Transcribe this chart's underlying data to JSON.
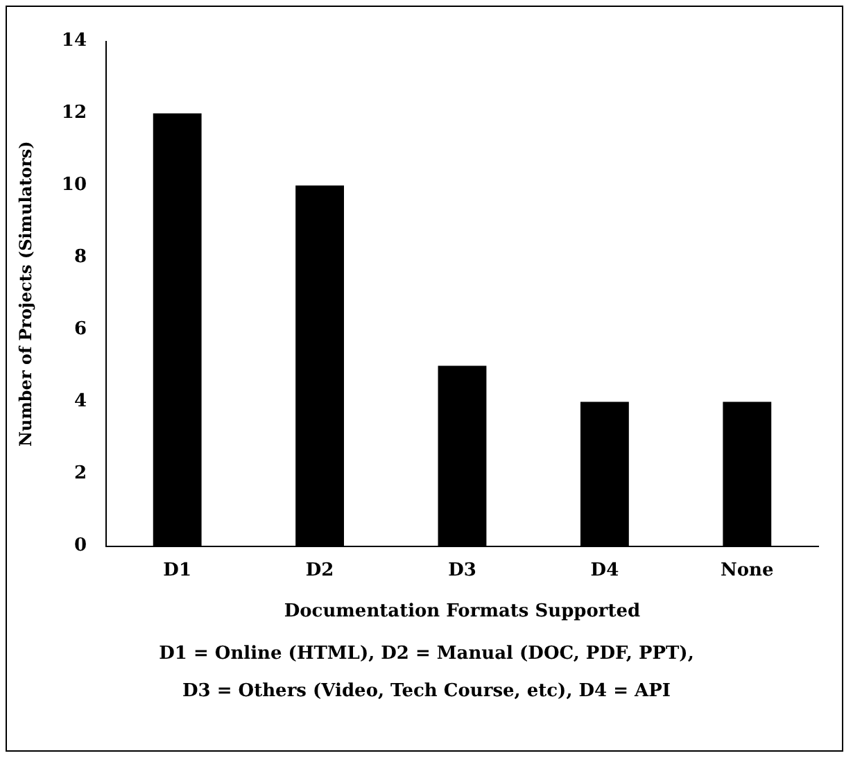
{
  "chart_data": {
    "type": "bar",
    "xlabel": "Documentation Formats Supported",
    "ylabel": "Number of Projects (Simulators)",
    "categories": [
      "D1",
      "D2",
      "D3",
      "D4",
      "None"
    ],
    "values": [
      12,
      10,
      5,
      4,
      4
    ],
    "color": "#000000",
    "ylim": [
      0,
      14
    ],
    "yticks": [
      0,
      2,
      4,
      6,
      8,
      10,
      12,
      14
    ],
    "grid": false,
    "legend": false,
    "annotations": [
      "D1 = Online (HTML), D2 = Manual (DOC, PDF, PPT),",
      "D3 = Others (Video, Tech Course, etc), D4 = API"
    ]
  }
}
